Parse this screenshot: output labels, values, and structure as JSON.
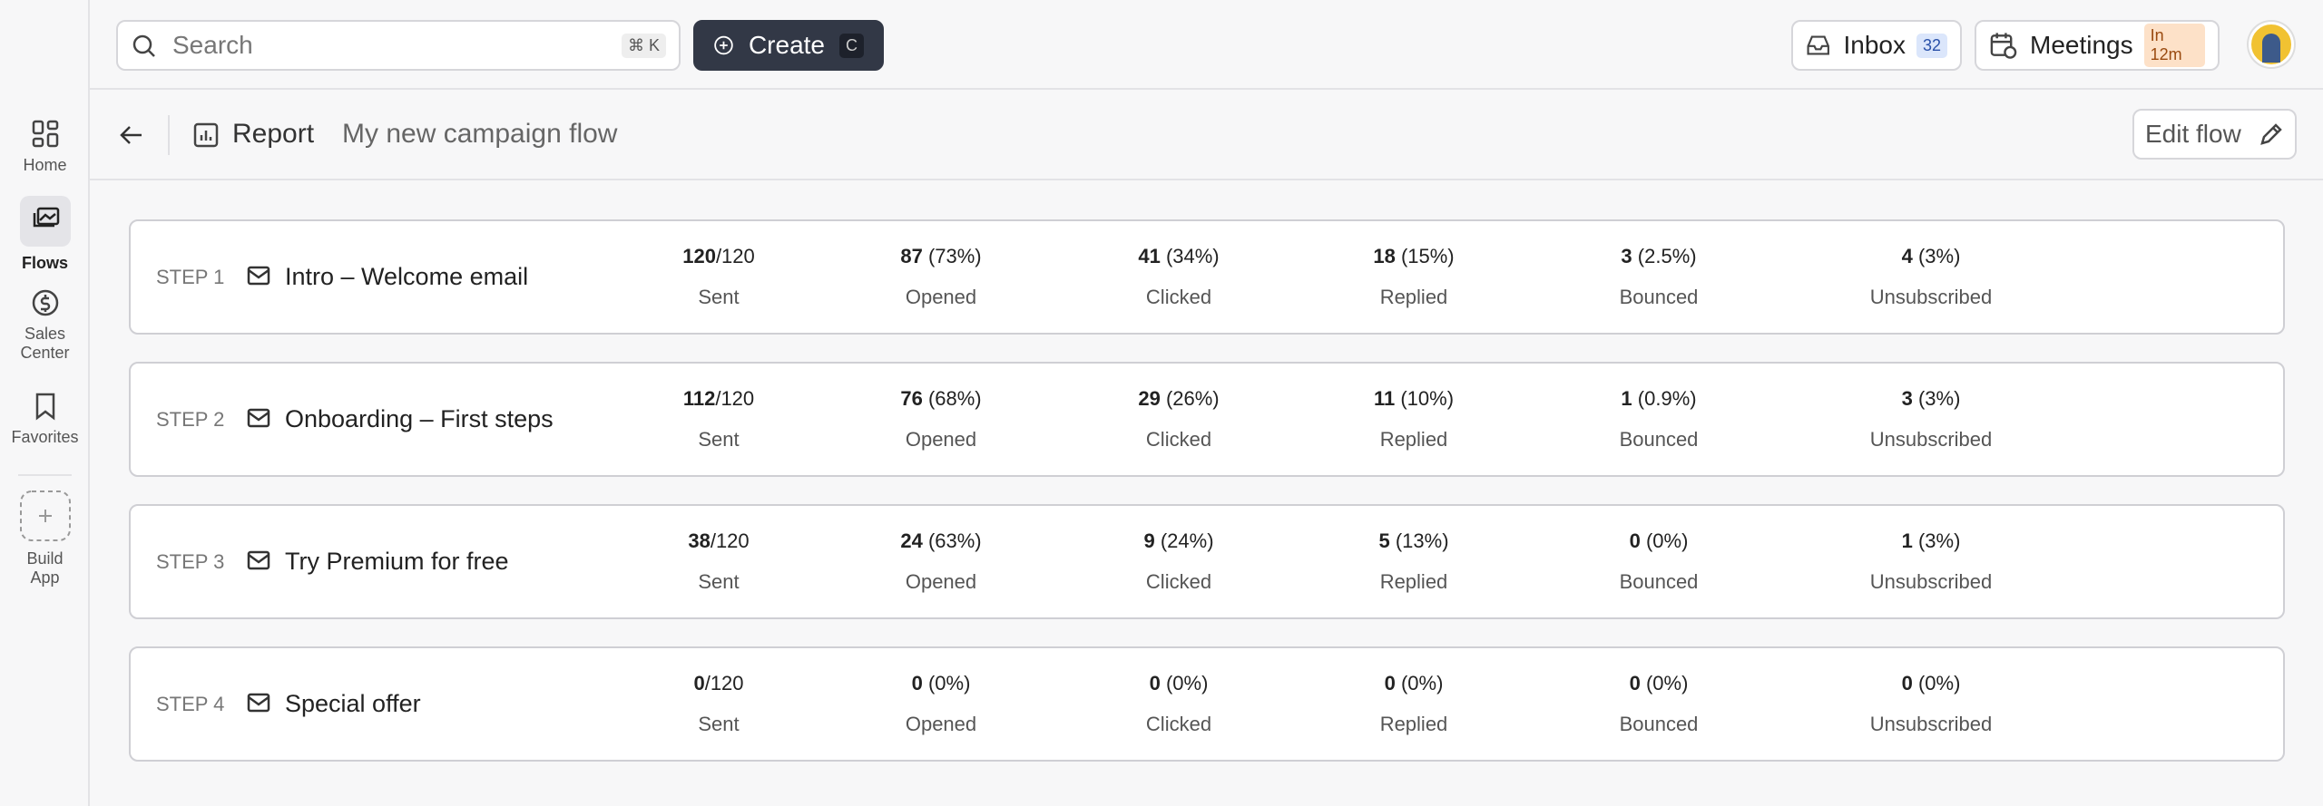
{
  "topbar": {
    "search_placeholder": "Search",
    "search_shortcut": "⌘ K",
    "create": "Create",
    "create_shortcut": "C",
    "inbox": "Inbox",
    "inbox_count": "32",
    "meetings": "Meetings",
    "meetings_badge": "In 12m"
  },
  "sidebar": [
    {
      "label": "Home"
    },
    {
      "label": "Flows"
    },
    {
      "label": "Sales Center"
    },
    {
      "label": "Favorites"
    },
    {
      "label": "Build App"
    }
  ],
  "header": {
    "section": "Report",
    "title": "My new campaign flow",
    "edit": "Edit flow"
  },
  "steps": [
    {
      "step": "STEP 1",
      "name": "Intro – Welcome email",
      "metrics": [
        {
          "value": "120",
          "detail": "/120",
          "label": "Sent"
        },
        {
          "value": "87",
          "detail": "(73%)",
          "label": "Opened"
        },
        {
          "value": "41",
          "detail": "(34%)",
          "label": "Clicked"
        },
        {
          "value": "18",
          "detail": "(15%)",
          "label": "Replied"
        },
        {
          "value": "3",
          "detail": "(2.5%)",
          "label": "Bounced"
        },
        {
          "value": "4",
          "detail": "(3%)",
          "label": "Unsubscribed"
        }
      ]
    },
    {
      "step": "STEP 2",
      "name": "Onboarding – First steps",
      "metrics": [
        {
          "value": "112",
          "detail": "/120",
          "label": "Sent"
        },
        {
          "value": "76",
          "detail": "(68%)",
          "label": "Opened"
        },
        {
          "value": "29",
          "detail": "(26%)",
          "label": "Clicked"
        },
        {
          "value": "11",
          "detail": "(10%)",
          "label": "Replied"
        },
        {
          "value": "1",
          "detail": "(0.9%)",
          "label": "Bounced"
        },
        {
          "value": "3",
          "detail": "(3%)",
          "label": "Unsubscribed"
        }
      ]
    },
    {
      "step": "STEP 3",
      "name": "Try Premium for free",
      "metrics": [
        {
          "value": "38",
          "detail": "/120",
          "label": "Sent"
        },
        {
          "value": "24",
          "detail": "(63%)",
          "label": "Opened"
        },
        {
          "value": "9",
          "detail": "(24%)",
          "label": "Clicked"
        },
        {
          "value": "5",
          "detail": "(13%)",
          "label": "Replied"
        },
        {
          "value": "0",
          "detail": "(0%)",
          "label": "Bounced"
        },
        {
          "value": "1",
          "detail": "(3%)",
          "label": "Unsubscribed"
        }
      ]
    },
    {
      "step": "STEP 4",
      "name": "Special offer",
      "metrics": [
        {
          "value": "0",
          "detail": "/120",
          "label": "Sent"
        },
        {
          "value": "0",
          "detail": "(0%)",
          "label": "Opened"
        },
        {
          "value": "0",
          "detail": "(0%)",
          "label": "Clicked"
        },
        {
          "value": "0",
          "detail": "(0%)",
          "label": "Replied"
        },
        {
          "value": "0",
          "detail": "(0%)",
          "label": "Bounced"
        },
        {
          "value": "0",
          "detail": "(0%)",
          "label": "Unsubscribed"
        }
      ]
    }
  ]
}
